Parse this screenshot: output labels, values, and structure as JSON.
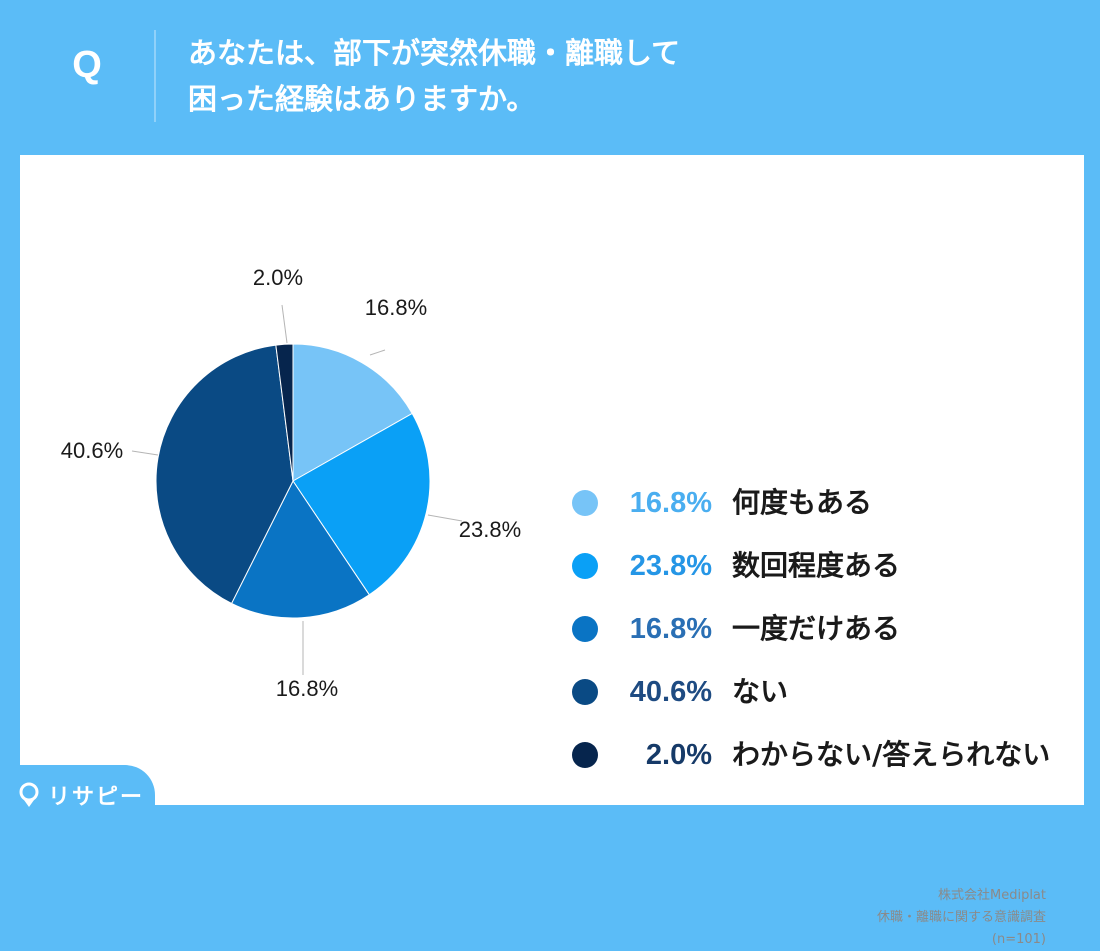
{
  "header": {
    "q_label": "Q",
    "question_line1": "あなたは、部下が突然休職・離職して",
    "question_line2": "困った経験はありますか。"
  },
  "chart_data": {
    "type": "pie",
    "slices": [
      {
        "label": "何度もある",
        "value": 16.8,
        "value_text": "16.8%",
        "color": "#77c4f7"
      },
      {
        "label": "数回程度ある",
        "value": 23.8,
        "value_text": "23.8%",
        "color": "#0aa0f6"
      },
      {
        "label": "一度だけある",
        "value": 16.8,
        "value_text": "16.8%",
        "color": "#0a74c4"
      },
      {
        "label": "ない",
        "value": 40.6,
        "value_text": "40.6%",
        "color": "#0a4a84"
      },
      {
        "label": "わからない/答えられない",
        "value": 2.0,
        "value_text": "2.0%",
        "color": "#06254d"
      }
    ],
    "legend_position": "right"
  },
  "colors": {
    "background": "#5bbcf7",
    "panel": "#ffffff",
    "legend_pct_colors": [
      "#4aaef0",
      "#2596e6",
      "#2a6fb4",
      "#1e4b82",
      "#163a68"
    ]
  },
  "credit": {
    "line1": "株式会社Mediplat",
    "line2": "休職・離職に関する意識調査",
    "line3": "(n=101)"
  },
  "logo": {
    "text": "リサピー",
    "icon": "pin-icon"
  }
}
